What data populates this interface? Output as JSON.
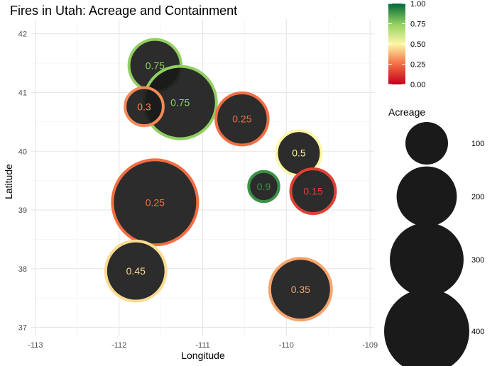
{
  "chart_data": {
    "type": "scatter",
    "title": "Fires in Utah: Acreage and Containment",
    "xlabel": "Longitude",
    "ylabel": "Latitude",
    "xlim": [
      -113.05,
      -108.95
    ],
    "ylim": [
      36.85,
      42.25
    ],
    "xticks": [
      -113,
      -112,
      -111,
      -110,
      -109
    ],
    "yticks": [
      37,
      38,
      39,
      40,
      41,
      42
    ],
    "xtick_labels": [
      "-113",
      "-112",
      "-111",
      "-110",
      "-109"
    ],
    "ytick_labels": [
      "37",
      "38",
      "39",
      "40",
      "41",
      "42"
    ],
    "grid": true,
    "color_legend": {
      "ticks": [
        0,
        0.25,
        0.5,
        0.75,
        1
      ],
      "tick_labels": [
        "0.00",
        "0.25",
        "0.50",
        "0.75",
        "1.00"
      ],
      "colors": [
        "#c2001d",
        "#f46d43",
        "#fdf7a6",
        "#91cf60",
        "#006837"
      ]
    },
    "size_legend": {
      "title": "Acreage",
      "values": [
        100,
        200,
        300,
        400
      ],
      "labels": [
        "100",
        "200",
        "300",
        "400"
      ]
    },
    "points": [
      {
        "x": -111.57,
        "y": 41.46,
        "acreage": 150,
        "containment": 0.75,
        "label": "0.75"
      },
      {
        "x": -111.27,
        "y": 40.83,
        "acreage": 290,
        "containment": 0.75,
        "label": "0.75"
      },
      {
        "x": -111.7,
        "y": 40.76,
        "acreage": 80,
        "containment": 0.3,
        "label": "0.3"
      },
      {
        "x": -110.53,
        "y": 40.55,
        "acreage": 150,
        "containment": 0.25,
        "label": "0.25"
      },
      {
        "x": -109.85,
        "y": 39.97,
        "acreage": 110,
        "containment": 0.5,
        "label": "0.5"
      },
      {
        "x": -110.27,
        "y": 39.4,
        "acreage": 50,
        "containment": 0.9,
        "label": "0.9"
      },
      {
        "x": -109.68,
        "y": 39.32,
        "acreage": 110,
        "containment": 0.15,
        "label": "0.15"
      },
      {
        "x": -111.57,
        "y": 39.13,
        "acreage": 400,
        "containment": 0.25,
        "label": "0.25"
      },
      {
        "x": -111.8,
        "y": 37.96,
        "acreage": 200,
        "containment": 0.45,
        "label": "0.45"
      },
      {
        "x": -109.83,
        "y": 37.65,
        "acreage": 210,
        "containment": 0.35,
        "label": "0.35"
      }
    ]
  }
}
